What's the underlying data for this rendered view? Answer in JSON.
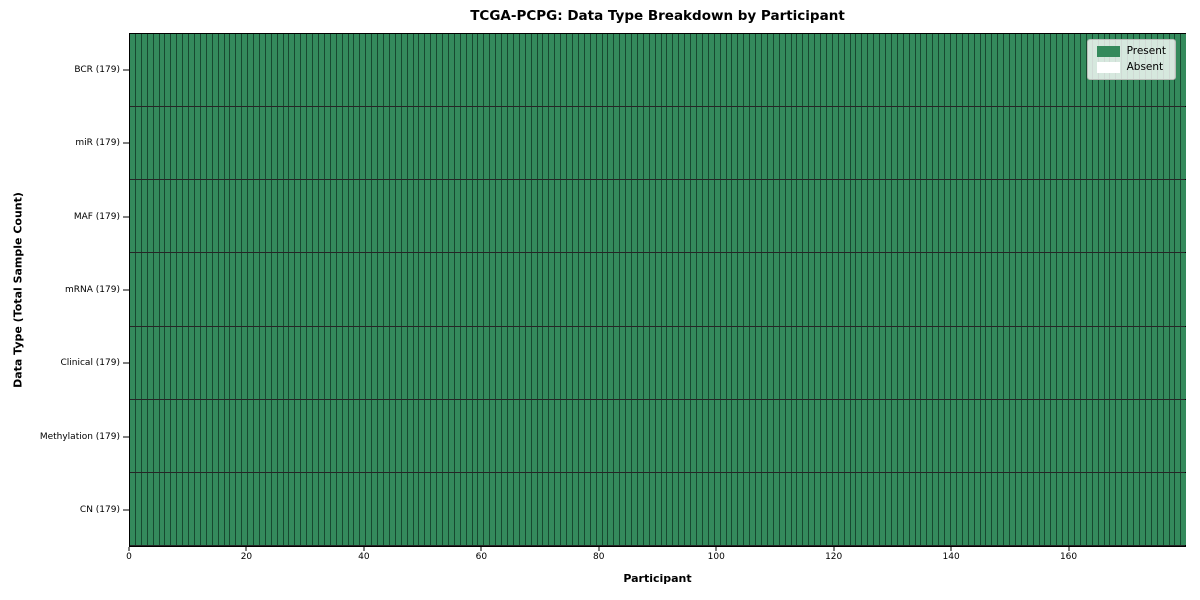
{
  "figure": {
    "title": "TCGA-PCPG: Data Type Breakdown by Participant",
    "xlabel": "Participant",
    "ylabel": "Data Type (Total Sample Count)"
  },
  "legend": {
    "position": "upper right",
    "items": [
      {
        "label": "Present",
        "color": "#348a5c"
      },
      {
        "label": "Absent",
        "color": "#ffffff"
      }
    ]
  },
  "chart_data": {
    "type": "heatmap",
    "title": "TCGA-PCPG: Data Type Breakdown by Participant",
    "xlabel": "Participant",
    "ylabel": "Data Type (Total Sample Count)",
    "xlim": [
      0,
      179
    ],
    "x_ticks": [
      0,
      20,
      40,
      60,
      80,
      100,
      120,
      140,
      160
    ],
    "n_participants": 179,
    "grid": true,
    "colors": {
      "present": "#348a5c",
      "absent": "#ffffff",
      "cell_edge": "rgba(5,30,18,0.60)"
    },
    "rows": [
      {
        "label": "BCR (179)",
        "data_type": "BCR",
        "total_samples": 179,
        "present_count": 179,
        "absent_count": 0
      },
      {
        "label": "miR (179)",
        "data_type": "miR",
        "total_samples": 179,
        "present_count": 179,
        "absent_count": 0
      },
      {
        "label": "MAF (179)",
        "data_type": "MAF",
        "total_samples": 179,
        "present_count": 179,
        "absent_count": 0
      },
      {
        "label": "mRNA (179)",
        "data_type": "mRNA",
        "total_samples": 179,
        "present_count": 179,
        "absent_count": 0
      },
      {
        "label": "Clinical (179)",
        "data_type": "Clinical",
        "total_samples": 179,
        "present_count": 179,
        "absent_count": 0
      },
      {
        "label": "Methylation (179)",
        "data_type": "Methylation",
        "total_samples": 179,
        "present_count": 179,
        "absent_count": 0
      },
      {
        "label": "CN (179)",
        "data_type": "CN",
        "total_samples": 179,
        "present_count": 179,
        "absent_count": 0
      }
    ]
  }
}
